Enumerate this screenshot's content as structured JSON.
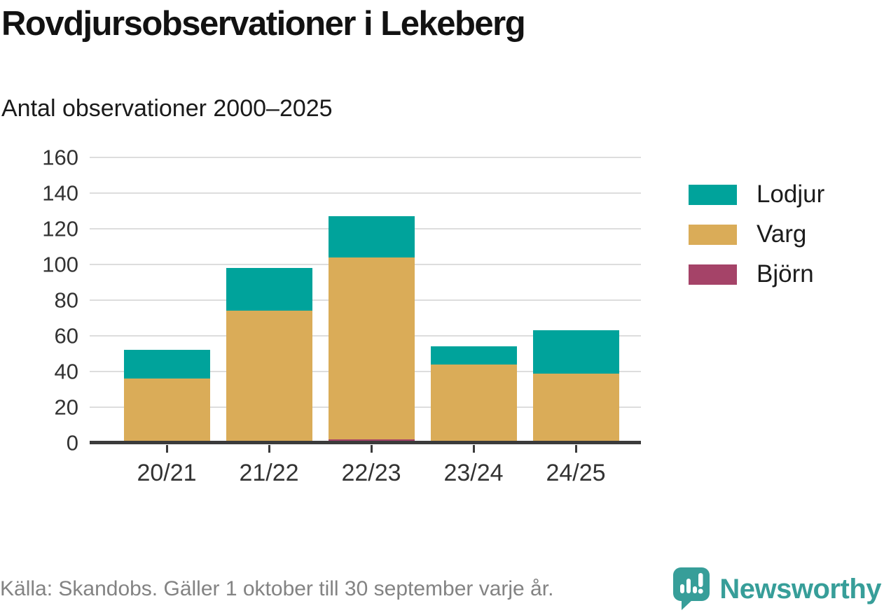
{
  "header": {
    "title": "Rovdjursobservationer i Lekeberg",
    "subtitle": "Antal observationer 2000–2025"
  },
  "chart_data": {
    "type": "bar",
    "stacked": true,
    "title": "Rovdjursobservationer i Lekeberg",
    "subtitle": "Antal observationer 2000–2025",
    "categories": [
      "20/21",
      "21/22",
      "22/23",
      "23/24",
      "24/25"
    ],
    "series": [
      {
        "name": "Björn",
        "color": "#A54368",
        "values": [
          0,
          1,
          2,
          0,
          0
        ]
      },
      {
        "name": "Varg",
        "color": "#DAAC58",
        "values": [
          36,
          73,
          102,
          44,
          39
        ]
      },
      {
        "name": "Lodjur",
        "color": "#00A39B",
        "values": [
          16,
          24,
          23,
          10,
          24
        ]
      }
    ],
    "totals": [
      52,
      98,
      127,
      54,
      63
    ],
    "legend": [
      {
        "label": "Lodjur",
        "color": "#00A39B"
      },
      {
        "label": "Varg",
        "color": "#DAAC58"
      },
      {
        "label": "Björn",
        "color": "#A54368"
      }
    ],
    "legend_position": "right",
    "xlabel": "",
    "ylabel": "",
    "ylim": [
      0,
      160
    ],
    "yticks": [
      0,
      20,
      40,
      60,
      80,
      100,
      120,
      140,
      160
    ],
    "grid": true
  },
  "footer": {
    "source": "Källa: Skandobs. Gäller 1 oktober till 30 september varje år.",
    "brand": "Newsworthy",
    "brand_color": "#379E99"
  }
}
